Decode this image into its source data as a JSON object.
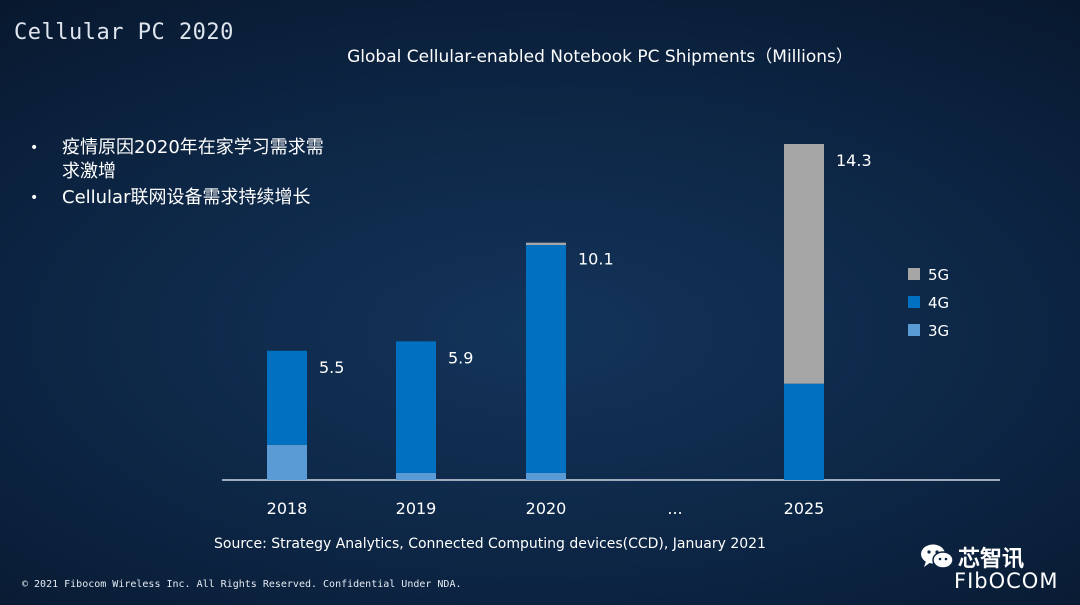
{
  "slide": {
    "title": "Cellular PC 2020",
    "bullets": [
      "疫情原因2020年在家学习需求需求激增",
      "Cellular联网设备需求持续增长"
    ],
    "footer": "© 2021 Fibocom Wireless Inc. All Rights Reserved. Confidential Under NDA.",
    "brand_cn": "芯智讯",
    "brand_en": "FIbOCOM"
  },
  "chart_data": {
    "type": "bar",
    "stacked": true,
    "title": "Global Cellular-enabled Notebook PC Shipments（Millions）",
    "categories": [
      "2018",
      "2019",
      "2020",
      "...",
      "2025"
    ],
    "series": [
      {
        "name": "3G",
        "color": "#5b9bd5",
        "values": [
          1.5,
          0.3,
          0.3,
          null,
          0
        ]
      },
      {
        "name": "4G",
        "color": "#0070c0",
        "values": [
          4.0,
          5.6,
          9.7,
          null,
          4.1
        ]
      },
      {
        "name": "5G",
        "color": "#a6a6a6",
        "values": [
          0,
          0,
          0.1,
          null,
          10.2
        ]
      }
    ],
    "totals": [
      5.5,
      5.9,
      10.1,
      null,
      14.3
    ],
    "total_labels": [
      "5.5",
      "5.9",
      "10.1",
      "",
      "14.3"
    ],
    "legend_order": [
      "5G",
      "4G",
      "3G"
    ],
    "legend_position": "right",
    "source": "Source: Strategy Analytics, Connected Computing devices(CCD), January 2021",
    "ylim": [
      0,
      14.3
    ],
    "grid": false
  }
}
